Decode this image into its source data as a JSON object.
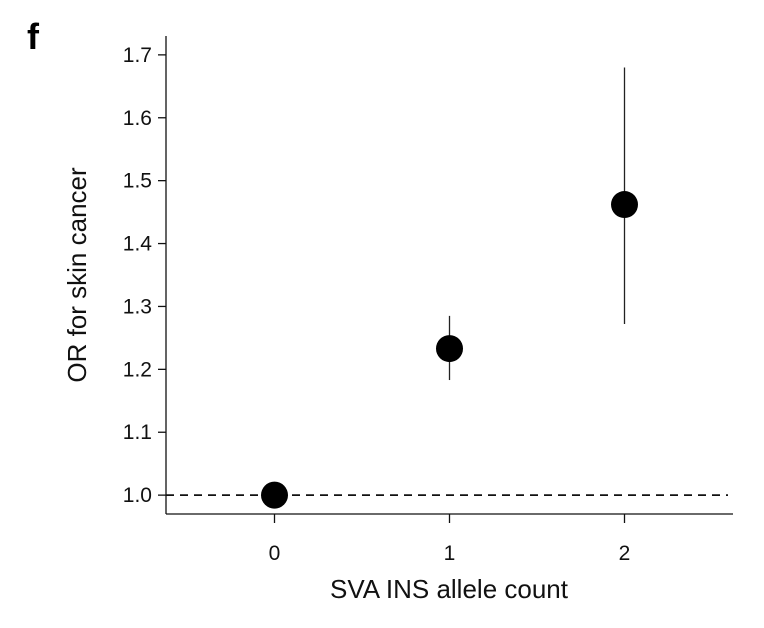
{
  "panel_label": "f",
  "chart_data": {
    "type": "scatter",
    "title": "",
    "xlabel": "SVA INS allele count",
    "ylabel": "OR for skin cancer",
    "x_ticks": [
      0,
      1,
      2
    ],
    "x_tick_labels": [
      "0",
      "1",
      "2"
    ],
    "y_ticks": [
      1.0,
      1.1,
      1.2,
      1.3,
      1.4,
      1.5,
      1.6,
      1.7
    ],
    "y_tick_labels": [
      "1.0",
      "1.1",
      "1.2",
      "1.3",
      "1.4",
      "1.5",
      "1.6",
      "1.7"
    ],
    "xlim": [
      -0.62,
      2.62
    ],
    "ylim": [
      0.97,
      1.73
    ],
    "reference_line": {
      "y": 1.0,
      "style": "dashed"
    },
    "points": [
      {
        "x": 0,
        "y": 1.0,
        "ci_low": 1.0,
        "ci_high": 1.0
      },
      {
        "x": 1,
        "y": 1.233,
        "ci_low": 1.183,
        "ci_high": 1.285
      },
      {
        "x": 2,
        "y": 1.462,
        "ci_low": 1.272,
        "ci_high": 1.68
      }
    ],
    "grid": false,
    "legend": "none",
    "marker_color": "#000000"
  }
}
